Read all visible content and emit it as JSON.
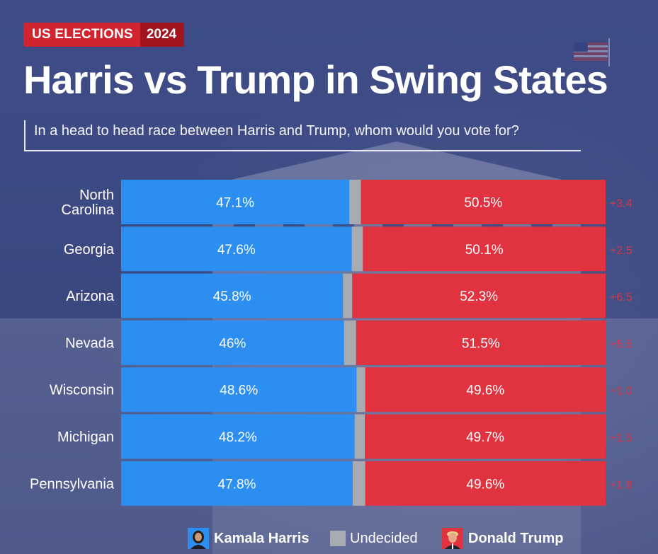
{
  "header": {
    "tag_left": "US ELECTIONS",
    "tag_right": "2024",
    "title": "Harris vs Trump in Swing States",
    "subtitle": "In a head to head race between Harris and Trump, whom would you vote for?"
  },
  "colors": {
    "harris": "#2b8ef0",
    "undecided": "#a9abb3",
    "trump": "#e0323f",
    "margin_text": "#e0323f",
    "background": "#3d4a83",
    "tag_red": "#d1242f",
    "tag_dark": "#a3141d"
  },
  "chart_data": {
    "type": "bar",
    "orientation": "horizontal",
    "stacked": true,
    "title": "Harris vs Trump in Swing States",
    "subtitle": "In a head to head race between Harris and Trump, whom would you vote for?",
    "categories": [
      "North Carolina",
      "Georgia",
      "Arizona",
      "Nevada",
      "Wisconsin",
      "Michigan",
      "Pennsylvania"
    ],
    "category_labels": [
      [
        "North",
        "Carolina"
      ],
      [
        "Georgia"
      ],
      [
        "Arizona"
      ],
      [
        "Nevada"
      ],
      [
        "Wisconsin"
      ],
      [
        "Michigan"
      ],
      [
        "Pennsylvania"
      ]
    ],
    "series": [
      {
        "name": "Kamala Harris",
        "values": [
          47.1,
          47.6,
          45.8,
          46,
          48.6,
          48.2,
          47.8
        ],
        "labels": [
          "47.1%",
          "47.6%",
          "45.8%",
          "46%",
          "48.6%",
          "48.2%",
          "47.8%"
        ]
      },
      {
        "name": "Undecided",
        "values": [
          2.4,
          2.3,
          1.9,
          2.5,
          1.8,
          2.1,
          2.6
        ],
        "labels": []
      },
      {
        "name": "Donald Trump",
        "values": [
          50.5,
          50.1,
          52.3,
          51.5,
          49.6,
          49.7,
          49.6
        ],
        "labels": [
          "50.5%",
          "50.1%",
          "52.3%",
          "51.5%",
          "49.6%",
          "49.7%",
          "49.6%"
        ]
      }
    ],
    "margins": [
      "+3.4",
      "+2.5",
      "+6.5",
      "+5.5",
      "+1.0",
      "+1.5",
      "+1.8"
    ],
    "xlim": [
      0,
      100
    ],
    "grid": false,
    "legend_position": "bottom"
  },
  "legend": {
    "harris": "Kamala Harris",
    "undecided": "Undecided",
    "trump": "Donald Trump"
  },
  "icons": {
    "flag": "us-flag-icon",
    "harris_avatar": "harris-portrait-icon",
    "trump_avatar": "trump-portrait-icon"
  }
}
